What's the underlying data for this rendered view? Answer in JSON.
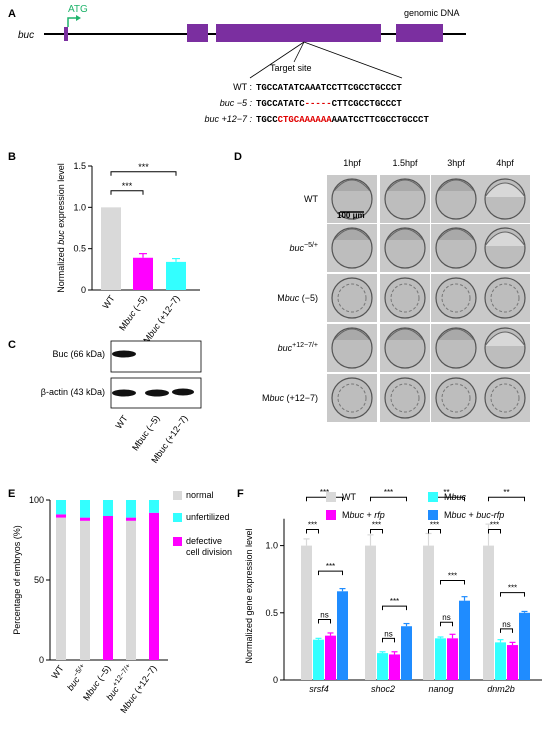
{
  "panels": {
    "A": "A",
    "B": "B",
    "C": "C",
    "D": "D",
    "E": "E",
    "F": "F"
  },
  "panelA": {
    "gene": "buc",
    "atg": "ATG",
    "genomic": "genomic DNA",
    "target": "Target site",
    "seqs": [
      {
        "label": "WT :",
        "pre": "TGCCATATCAAATCCTTCGCCTGCCCT",
        "red": "",
        "post": ""
      },
      {
        "label": "buc −5 :",
        "pre": "TGCCATATC",
        "red": "-----",
        "post": "CTTCGCCTGCCCT"
      },
      {
        "label": "buc +12−7 :",
        "pre": "TGCC",
        "red": "CTGCAAAAAA",
        "post": "AAATCCTTCGCCTGCCCT"
      }
    ]
  },
  "panelC": {
    "buc_label": "Buc (66 kDa)",
    "actin_label": "β-actin (43 kDa)",
    "lanes": [
      "WT",
      "Mbuc (−5)",
      "Mbuc (+12−7)"
    ]
  },
  "panelD": {
    "cols": [
      "1hpf",
      "1.5hpf",
      "3hpf",
      "4hpf"
    ],
    "rows": [
      "WT",
      "buc−5/+",
      "Mbuc (−5)",
      "buc+12−7/+",
      "Mbuc (+12−7)"
    ],
    "scale": "100 μm"
  },
  "chart_data": [
    {
      "panel": "B",
      "type": "bar",
      "ylabel": "Normalized buc expression level",
      "categories": [
        "WT",
        "Mbuc (−5)",
        "Mbuc (+12−7)"
      ],
      "values": [
        1.0,
        0.39,
        0.34
      ],
      "errors": [
        0,
        0.05,
        0.04
      ],
      "colors": [
        "#d9d9d9",
        "#ff00ff",
        "#33ffff"
      ],
      "ylim": [
        0,
        1.5
      ],
      "yticks": [
        "0",
        "0.5",
        "1.0",
        "1.5"
      ],
      "sig": [
        {
          "label": "***"
        },
        {
          "label": "***"
        }
      ]
    },
    {
      "panel": "E",
      "type": "bar",
      "stacked": true,
      "ylabel": "Percentage of embryos (%)",
      "categories": [
        "WT",
        "buc−5/+",
        "Mbuc (−5)",
        "buc+12−7/+",
        "Mbuc (+12−7)"
      ],
      "series": [
        {
          "name": "normal",
          "color": "#d9d9d9",
          "values": [
            89,
            87,
            0,
            87,
            0
          ]
        },
        {
          "name": "defective cell division",
          "color": "#ff00ff",
          "values": [
            2,
            2,
            90,
            2,
            92
          ]
        },
        {
          "name": "unfertilized",
          "color": "#33ffff",
          "values": [
            9,
            11,
            10,
            11,
            8
          ]
        }
      ],
      "legend": [
        "normal",
        "unfertilized",
        "defective cell division"
      ],
      "ylim": [
        0,
        100
      ],
      "yticks": [
        "0",
        "50",
        "100"
      ]
    },
    {
      "panel": "F",
      "type": "bar",
      "ylabel": "Normalized gene expression level",
      "categories": [
        "srsf4",
        "shoc2",
        "nanog",
        "dnm2b"
      ],
      "series": [
        {
          "name": "WT",
          "color": "#d9d9d9",
          "values": [
            1.0,
            1.0,
            1.0,
            1.0
          ],
          "errors": [
            0.05,
            0.08,
            0.09,
            0.16
          ]
        },
        {
          "name": "Mbuc",
          "color": "#33ffff",
          "values": [
            0.3,
            0.2,
            0.31,
            0.28
          ],
          "errors": [
            0.01,
            0.01,
            0.01,
            0.02
          ]
        },
        {
          "name": "Mbuc + rfp",
          "color": "#ff00ff",
          "values": [
            0.33,
            0.19,
            0.31,
            0.26
          ],
          "errors": [
            0.02,
            0.02,
            0.03,
            0.02
          ]
        },
        {
          "name": "Mbuc + buc-rfp",
          "color": "#1f8cff",
          "values": [
            0.66,
            0.4,
            0.59,
            0.5
          ],
          "errors": [
            0.02,
            0.02,
            0.03,
            0.01
          ]
        }
      ],
      "legend": [
        "WT",
        "Mbuc",
        "Mbuc + rfp",
        "Mbuc + buc-rfp"
      ],
      "ylim": [
        0,
        1.25
      ],
      "yticks": [
        "0",
        "0.5",
        "1.0"
      ],
      "sig_groups": [
        [
          "***",
          "***",
          "ns",
          "***"
        ],
        [
          "***",
          "***",
          "ns",
          "***"
        ],
        [
          "***",
          "**",
          "ns",
          "***"
        ],
        [
          "***",
          "**",
          "ns",
          "***"
        ]
      ]
    }
  ]
}
